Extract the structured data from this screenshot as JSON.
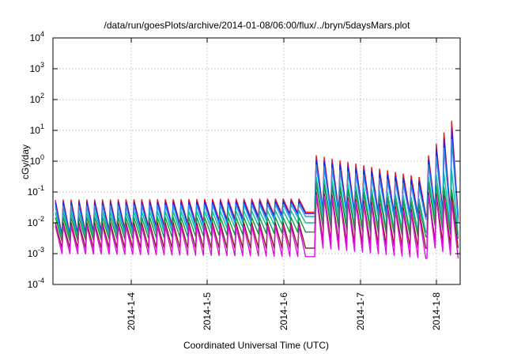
{
  "title": "/data/run/goesPlots/archive/2014-01-08/06:00/flux/../bryn/5daysMars.plot",
  "chart_data": {
    "type": "line",
    "title": "/data/run/goesPlots/archive/2014-01-08/06:00/flux/../bryn/5daysMars.plot",
    "xlabel": "Coordinated Universal Time (UTC)",
    "ylabel": "cGy/day",
    "yscale": "log",
    "ylim": [
      0.0001,
      10000
    ],
    "xlim": [
      "2014-01-03 06:00",
      "2014-01-08 06:00"
    ],
    "grid": true,
    "y_tick_labels": [
      {
        "base": "10",
        "exp": "-4"
      },
      {
        "base": "10",
        "exp": "-3"
      },
      {
        "base": "10",
        "exp": "-2"
      },
      {
        "base": "10",
        "exp": "-1"
      },
      {
        "base": "10",
        "exp": "0"
      },
      {
        "base": "10",
        "exp": "1"
      },
      {
        "base": "10",
        "exp": "2"
      },
      {
        "base": "10",
        "exp": "3"
      },
      {
        "base": "10",
        "exp": "4"
      }
    ],
    "x_tick_labels": [
      "2014-1-4",
      "2014-1-5",
      "2014-1-6",
      "2014-1-7",
      "2014-1-8"
    ],
    "series": [
      {
        "color": "#ee1111",
        "valley_segments": [
          [
            0.004,
            0.022
          ],
          [
            0.025,
            0.018
          ],
          [
            0.026,
            0.015
          ]
        ],
        "peak_segments": [
          [
            0.055,
            0.06
          ],
          [
            1.5,
            0.3
          ],
          [
            1.5,
            20
          ]
        ]
      },
      {
        "color": "#2222ee",
        "valley_segments": [
          [
            0.0035,
            0.02
          ],
          [
            0.022,
            0.016
          ],
          [
            0.022,
            0.013
          ]
        ],
        "peak_segments": [
          [
            0.045,
            0.05
          ],
          [
            1.1,
            0.22
          ],
          [
            1.1,
            12
          ]
        ]
      },
      {
        "color": "#2299ee",
        "valley_segments": [
          [
            0.003,
            0.016
          ],
          [
            0.018,
            0.013
          ],
          [
            0.02,
            0.01
          ]
        ],
        "peak_segments": [
          [
            0.035,
            0.04
          ],
          [
            0.75,
            0.15
          ],
          [
            0.75,
            5
          ]
        ]
      },
      {
        "color": "#11bb99",
        "valley_segments": [
          [
            0.003,
            0.01
          ],
          [
            0.01,
            0.005
          ],
          [
            0.012,
            0.004
          ]
        ],
        "peak_segments": [
          [
            0.022,
            0.025
          ],
          [
            0.3,
            0.06
          ],
          [
            0.3,
            0.5
          ]
        ]
      },
      {
        "color": "#119944",
        "valley_segments": [
          [
            0.0025,
            0.005
          ],
          [
            0.007,
            0.0035
          ],
          [
            0.008,
            0.003
          ]
        ],
        "peak_segments": [
          [
            0.015,
            0.015
          ],
          [
            0.2,
            0.04
          ],
          [
            0.2,
            0.12
          ]
        ]
      },
      {
        "color": "#8a1a1a",
        "valley_segments": [
          [
            0.0015,
            0.0015
          ],
          [
            0.0025,
            0.0015
          ],
          [
            0.0025,
            0.0015
          ]
        ],
        "peak_segments": [
          [
            0.01,
            0.01
          ],
          [
            0.1,
            0.025
          ],
          [
            0.1,
            0.07
          ]
        ]
      },
      {
        "color": "#dd11dd",
        "valley_segments": [
          [
            0.001,
            0.0008
          ],
          [
            0.0015,
            0.0007
          ],
          [
            0.0015,
            0.0007
          ]
        ],
        "peak_segments": [
          [
            0.008,
            0.008
          ],
          [
            0.08,
            0.02
          ],
          [
            0.08,
            0.05
          ]
        ]
      }
    ]
  }
}
